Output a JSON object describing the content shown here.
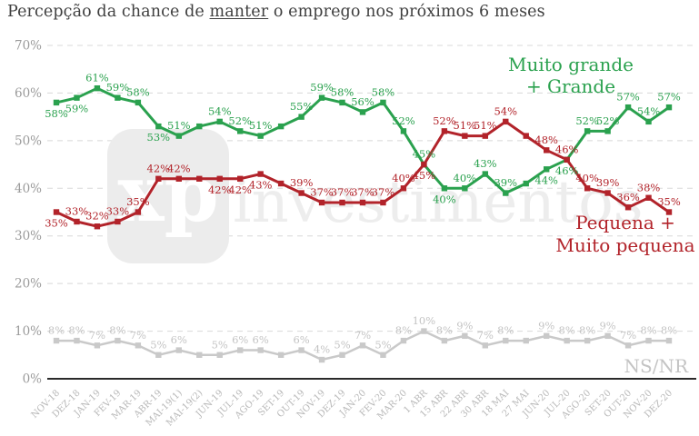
{
  "title": {
    "text_before": "Percepção da chance de ",
    "text_underlined": "manter",
    "text_after": " o emprego nos próximos 6 meses"
  },
  "watermark": {
    "logo_text": "xp",
    "brand_text": "investimentos"
  },
  "axis": {
    "y_tick_suffix": "%",
    "y_label_color": "#9b9b9b",
    "x_label_color": "#b8b8b8",
    "axis_line_color": "#2a2a2a",
    "grid_color": "#d8d8d8"
  },
  "chart_data": {
    "type": "line",
    "title": "Percepção da chance de manter o emprego nos próximos 6 meses",
    "categories": [
      "NOV-18",
      "DEZ-18",
      "JAN-19",
      "FEV-19",
      "MAR-19",
      "ABR-19",
      "MAI-19(1)",
      "MAI-19(2)",
      "JUN-19",
      "JUL-19",
      "AGO-19",
      "SET-19",
      "OUT-19",
      "NOV-19",
      "DEZ-19",
      "JAN-20",
      "FEV-20",
      "MAR-20",
      "1 ABR",
      "15 ABR",
      "22 ABR",
      "30 ABR",
      "18 MAI",
      "27 MAI",
      "JUN-20",
      "JUL-20",
      "AGO-20",
      "SET-20",
      "OUT-20",
      "NOV-20",
      "DEZ-20"
    ],
    "ylim": [
      0,
      70
    ],
    "yticks": [
      0,
      10,
      20,
      30,
      40,
      50,
      60,
      70
    ],
    "grid": "horizontal-dashed",
    "unlabeled_indices": [
      7,
      11,
      23
    ],
    "series": [
      {
        "name": "NS/NR",
        "color": "#c9c9c9",
        "label_color": "#c4c4c4",
        "values": [
          8,
          8,
          7,
          8,
          7,
          5,
          6,
          5,
          5,
          6,
          6,
          5,
          6,
          4,
          5,
          7,
          5,
          8,
          10,
          8,
          9,
          7,
          8,
          8,
          9,
          8,
          8,
          9,
          7,
          8,
          8
        ],
        "label_below": [],
        "legend_lines": [
          "NS/NR"
        ]
      },
      {
        "name": "Muito grande + Grande",
        "color": "#2aa14e",
        "label_color": "#2aa14e",
        "values": [
          58,
          59,
          61,
          59,
          58,
          53,
          51,
          53,
          54,
          52,
          51,
          53,
          55,
          59,
          58,
          56,
          58,
          52,
          45,
          40,
          40,
          43,
          39,
          41,
          44,
          46,
          52,
          52,
          57,
          54,
          57
        ],
        "label_below": [
          0,
          1,
          5,
          19,
          24,
          25
        ],
        "legend_lines": [
          "Muito grande",
          "+ Grande"
        ]
      },
      {
        "name": "Pequena + Muito pequena",
        "color": "#b2232a",
        "label_color": "#b2232a",
        "values": [
          35,
          33,
          32,
          33,
          35,
          42,
          42,
          42,
          42,
          42,
          43,
          41,
          39,
          37,
          37,
          37,
          37,
          40,
          45,
          52,
          51,
          51,
          54,
          51,
          48,
          46,
          40,
          39,
          36,
          38,
          35
        ],
        "label_below": [
          0,
          8,
          9,
          10,
          18
        ],
        "legend_lines": [
          "Pequena +",
          "Muito pequena"
        ]
      }
    ]
  }
}
